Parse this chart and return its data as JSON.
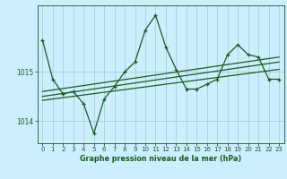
{
  "bg_color": "#cceeff",
  "line_color": "#1a5c1a",
  "grid_color": "#99cccc",
  "title": "Graphe pression niveau de la mer (hPa)",
  "ylim": [
    1013.55,
    1016.35
  ],
  "xlim": [
    -0.5,
    23.5
  ],
  "yticks": [
    1014,
    1015
  ],
  "xticks": [
    0,
    1,
    2,
    3,
    4,
    5,
    6,
    7,
    8,
    9,
    10,
    11,
    12,
    13,
    14,
    15,
    16,
    17,
    18,
    19,
    20,
    21,
    22,
    23
  ],
  "main_line_x": [
    0,
    1,
    2,
    3,
    4,
    5,
    6,
    7,
    8,
    9,
    10,
    11,
    12,
    13,
    14,
    15,
    16,
    17,
    18,
    19,
    20,
    21,
    22,
    23
  ],
  "main_line_y": [
    1015.65,
    1014.85,
    1014.55,
    1014.6,
    1014.35,
    1013.75,
    1014.45,
    1014.7,
    1015.0,
    1015.2,
    1015.85,
    1016.15,
    1015.5,
    1015.05,
    1014.65,
    1014.65,
    1014.75,
    1014.85,
    1015.35,
    1015.55,
    1015.35,
    1015.3,
    1014.85,
    1014.85
  ],
  "trend1_x": [
    0,
    23
  ],
  "trend1_y": [
    1014.6,
    1015.3
  ],
  "trend2_x": [
    0,
    23
  ],
  "trend2_y": [
    1014.5,
    1015.2
  ],
  "trend3_x": [
    0,
    23
  ],
  "trend3_y": [
    1014.42,
    1015.05
  ]
}
